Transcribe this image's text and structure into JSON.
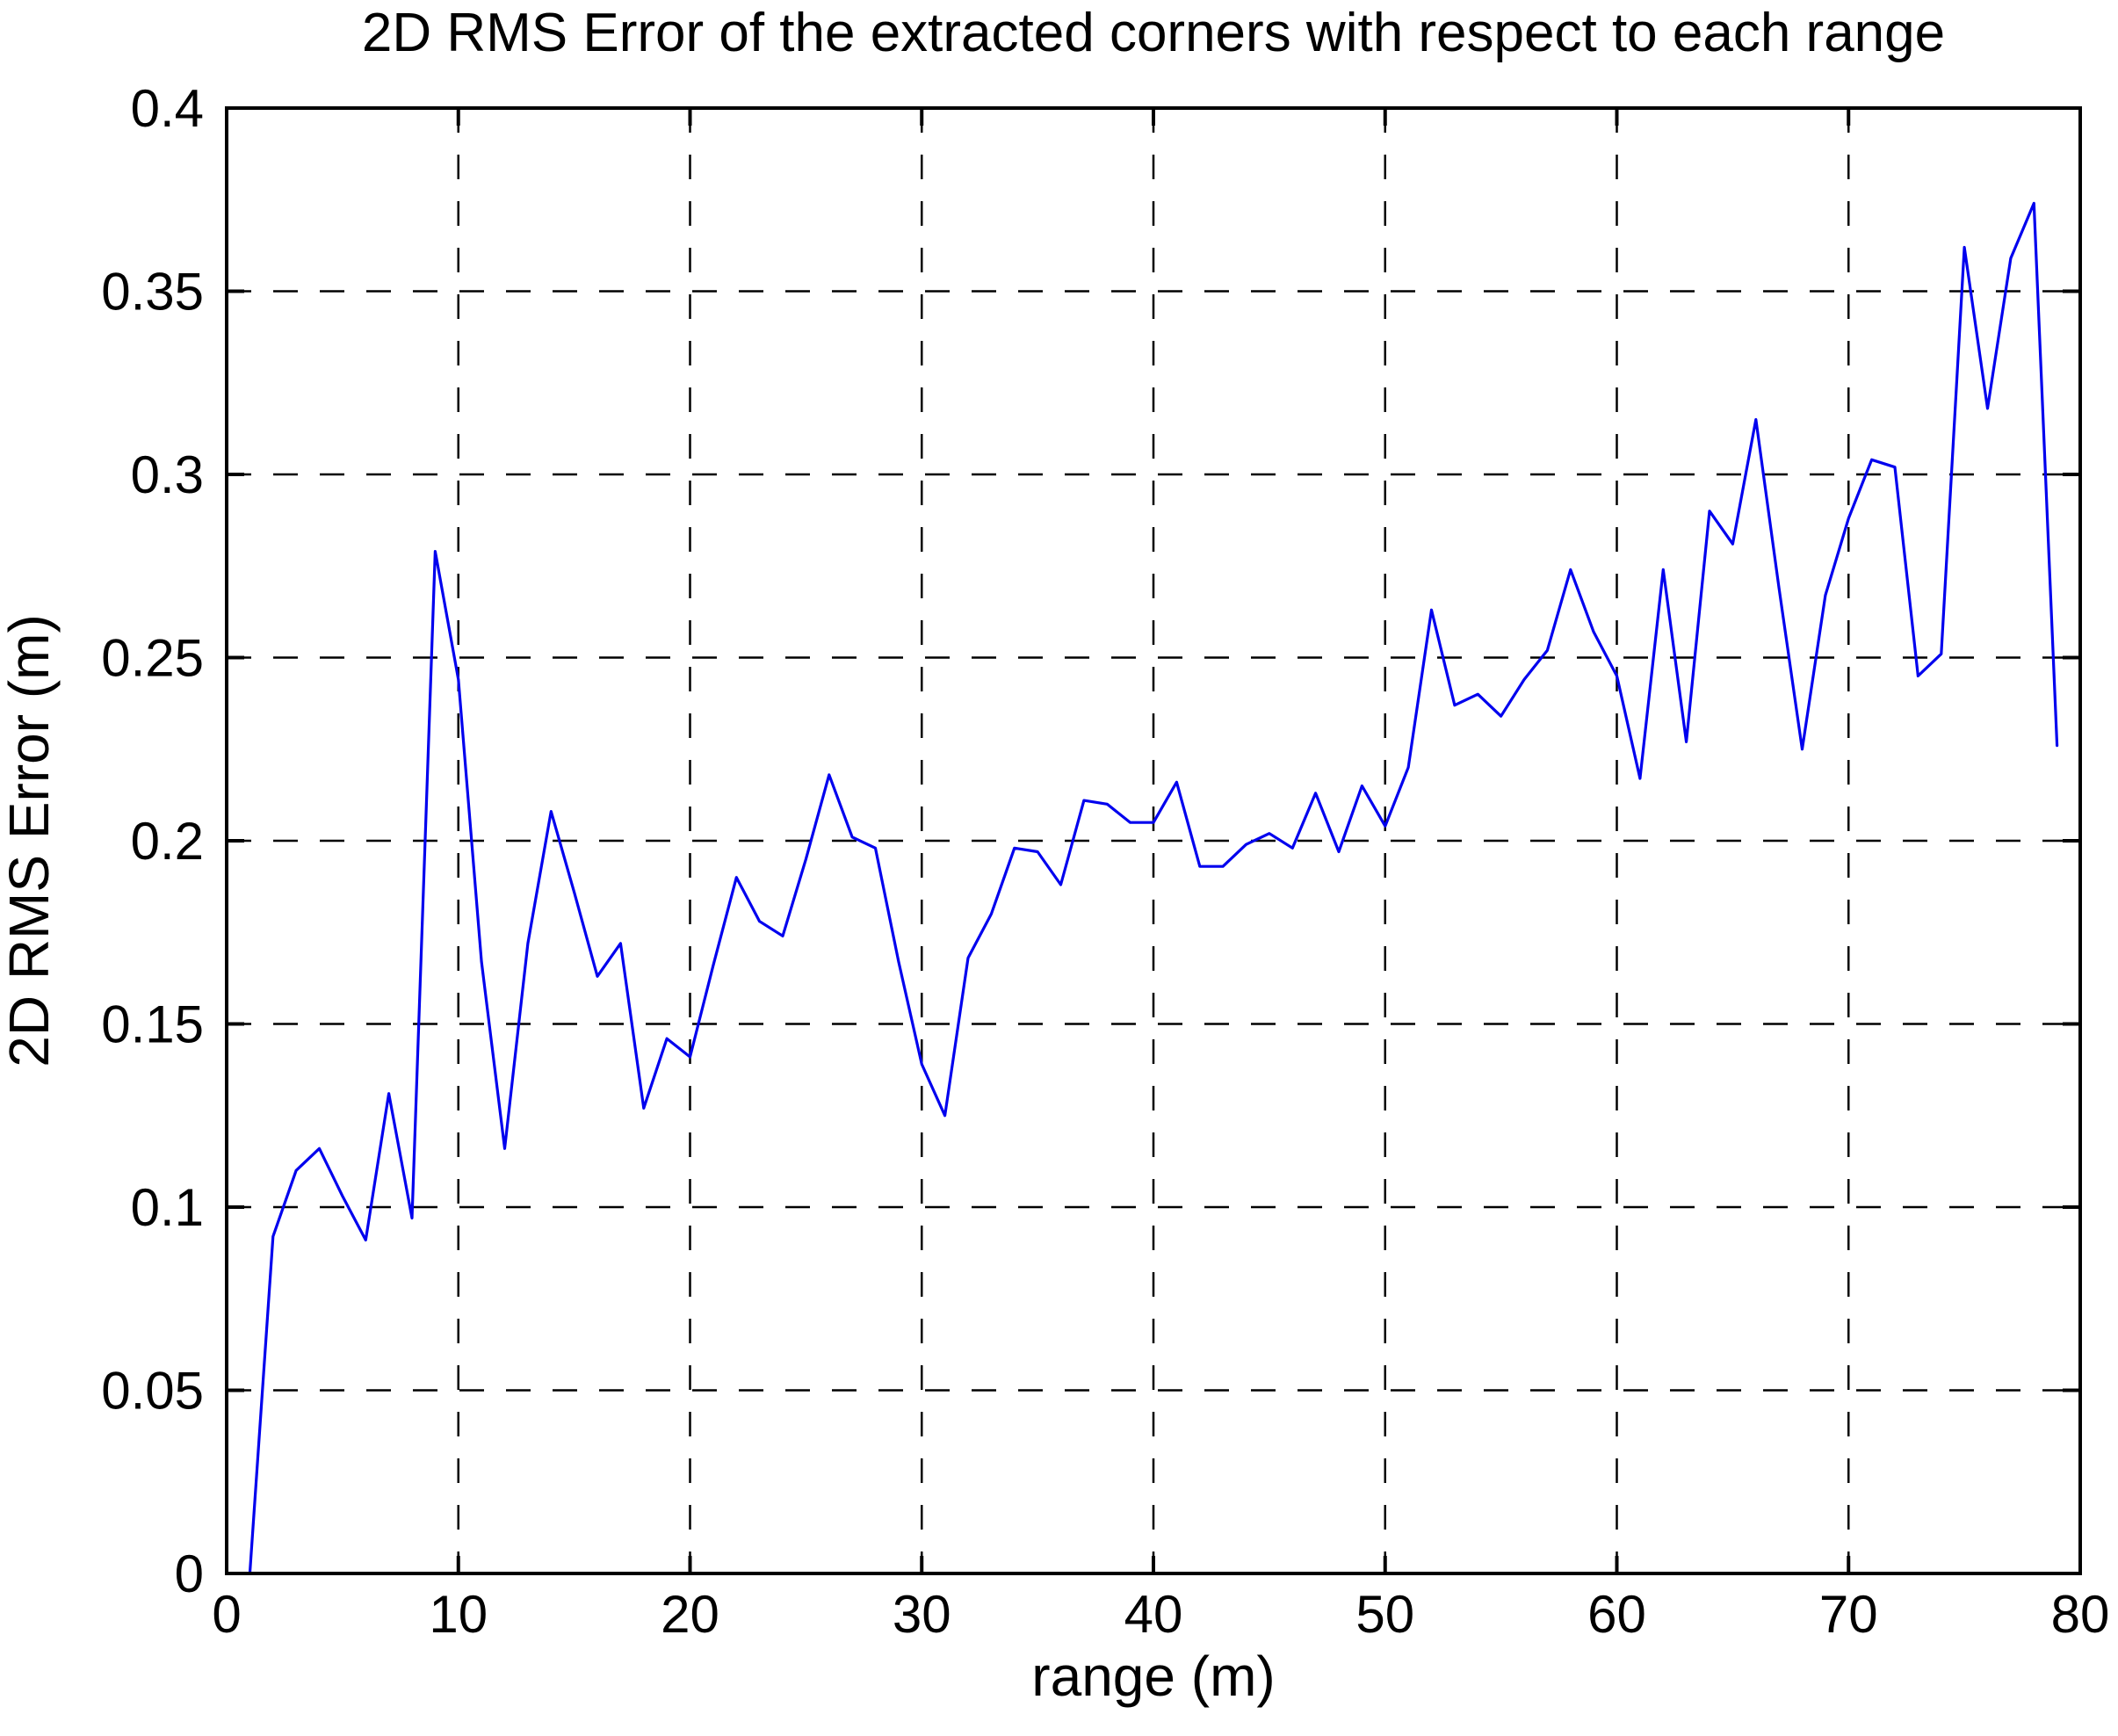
{
  "figure": {
    "background_color": "#ffffff",
    "axes_color": "#000000",
    "series_color": "#0000ee",
    "grid_style": "dashed"
  },
  "chart_data": {
    "type": "line",
    "title": "2D RMS Error of the extracted corners with respect to each range",
    "xlabel": "range (m)",
    "ylabel": "2D RMS Error (m)",
    "xlim": [
      0,
      80
    ],
    "ylim": [
      0,
      0.4
    ],
    "xticks": [
      0,
      10,
      20,
      30,
      40,
      50,
      60,
      70,
      80
    ],
    "xtick_labels": [
      "0",
      "10",
      "20",
      "30",
      "40",
      "50",
      "60",
      "70",
      "80"
    ],
    "yticks": [
      0,
      0.05,
      0.1,
      0.15,
      0.2,
      0.25,
      0.3,
      0.35,
      0.4
    ],
    "ytick_labels": [
      "0",
      "0.05",
      "0.1",
      "0.15",
      "0.2",
      "0.25",
      "0.3",
      "0.35",
      "0.4"
    ],
    "grid": true,
    "legend_position": "none",
    "series": [
      {
        "name": "2D RMS error",
        "color": "#0000ee",
        "x": [
          1,
          2,
          3,
          4,
          5,
          6,
          7,
          8,
          9,
          10,
          11,
          12,
          13,
          14,
          15,
          16,
          17,
          18,
          19,
          20,
          21,
          22,
          23,
          24,
          25,
          26,
          27,
          28,
          29,
          30,
          31,
          32,
          33,
          34,
          35,
          36,
          37,
          38,
          39,
          40,
          41,
          42,
          43,
          44,
          45,
          46,
          47,
          48,
          49,
          50,
          51,
          52,
          53,
          54,
          55,
          56,
          57,
          58,
          59,
          60,
          61,
          62,
          63,
          64,
          65,
          66,
          67,
          68,
          69,
          70,
          71,
          72,
          73,
          74,
          75,
          76,
          77,
          78,
          79
        ],
        "y": [
          0.0,
          0.092,
          0.11,
          0.116,
          0.103,
          0.091,
          0.131,
          0.097,
          0.279,
          0.244,
          0.167,
          0.116,
          0.172,
          0.208,
          0.186,
          0.163,
          0.172,
          0.127,
          0.146,
          0.141,
          0.166,
          0.19,
          0.178,
          0.174,
          0.195,
          0.218,
          0.201,
          0.198,
          0.167,
          0.139,
          0.125,
          0.168,
          0.18,
          0.198,
          0.197,
          0.188,
          0.211,
          0.21,
          0.205,
          0.205,
          0.216,
          0.193,
          0.193,
          0.199,
          0.202,
          0.198,
          0.213,
          0.197,
          0.215,
          0.204,
          0.22,
          0.263,
          0.237,
          0.24,
          0.234,
          0.244,
          0.252,
          0.274,
          0.257,
          0.245,
          0.217,
          0.274,
          0.227,
          0.29,
          0.281,
          0.315,
          0.269,
          0.225,
          0.267,
          0.288,
          0.304,
          0.302,
          0.245,
          0.251,
          0.362,
          0.318,
          0.359,
          0.374,
          0.226
        ]
      }
    ]
  }
}
